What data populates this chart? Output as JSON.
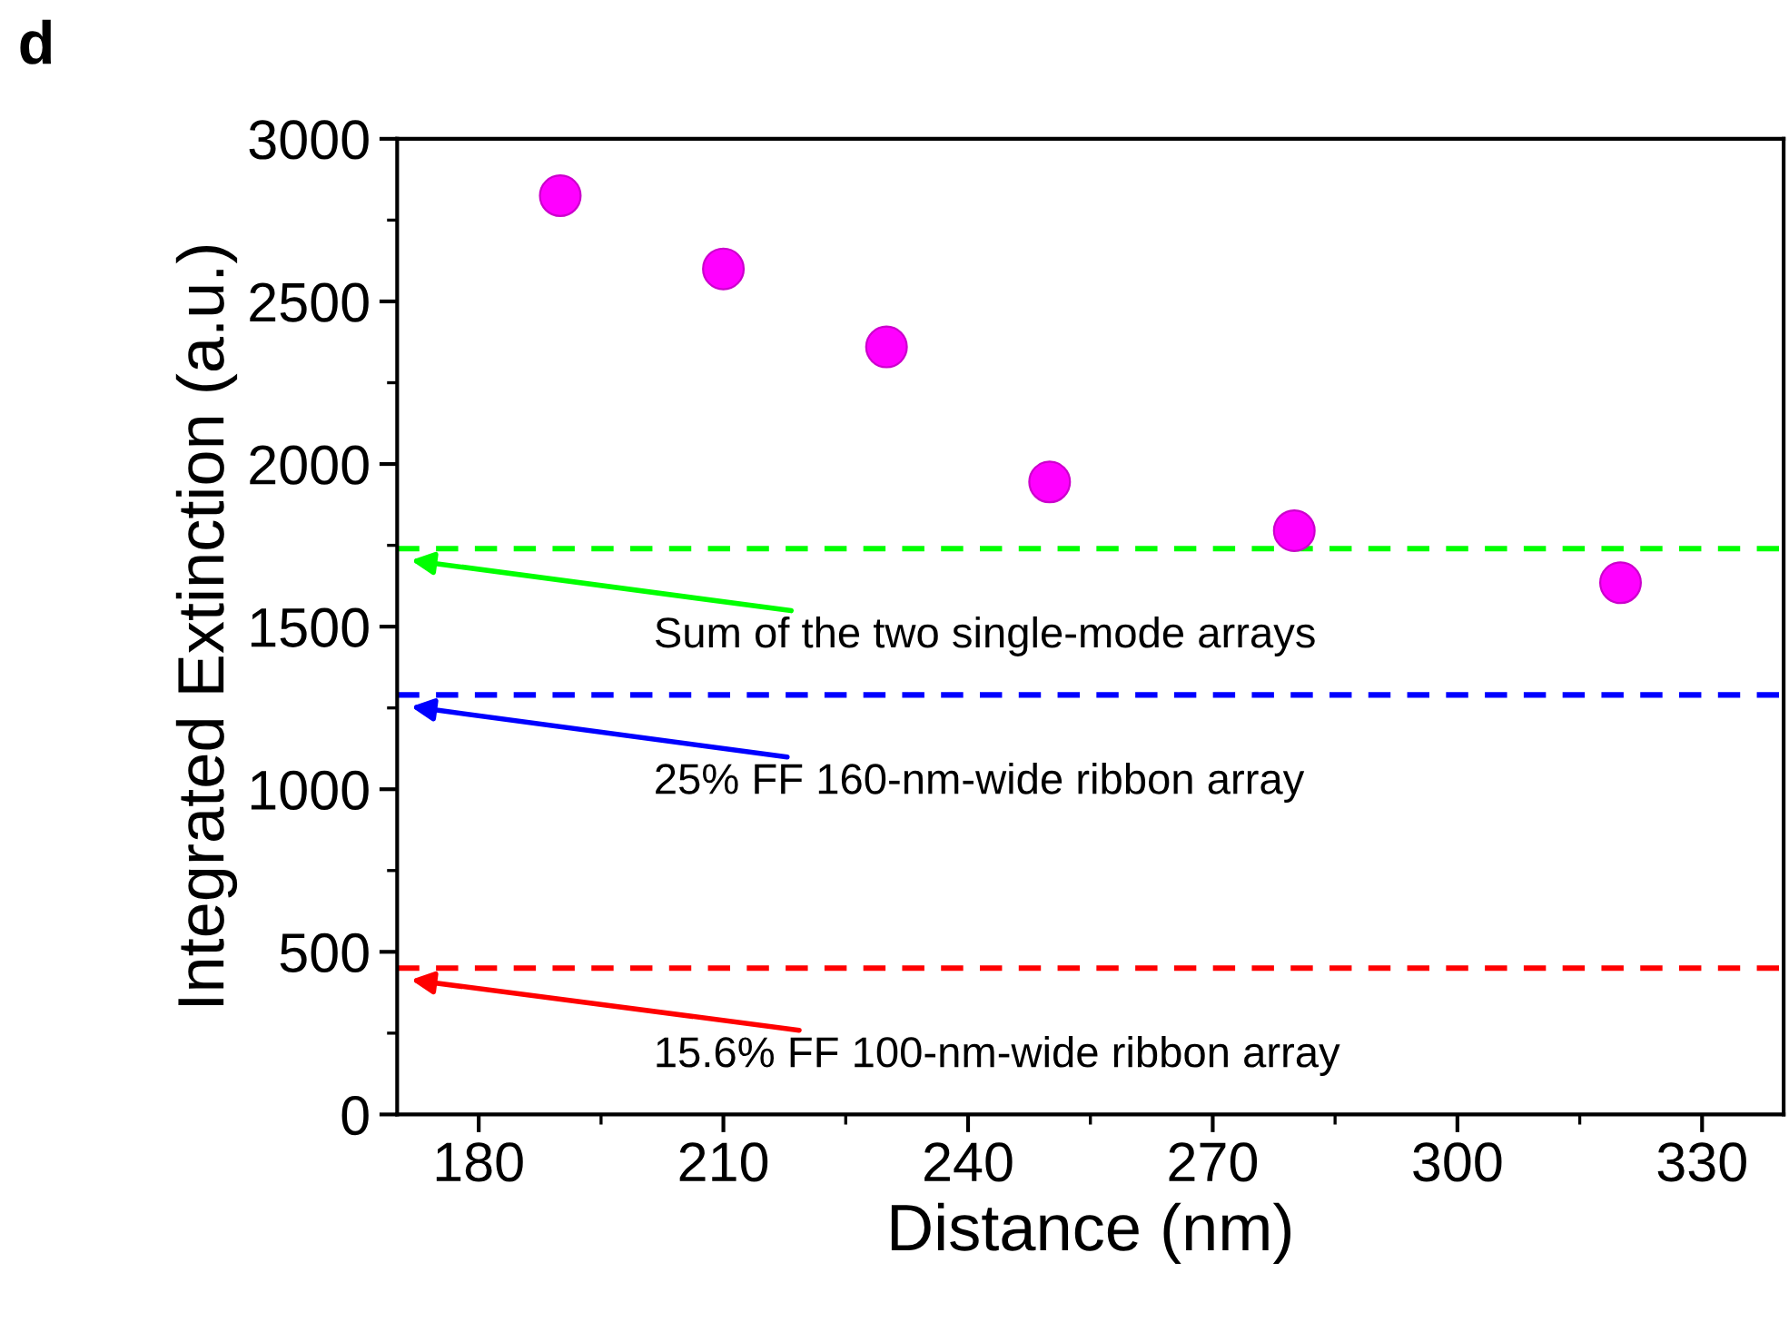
{
  "chart_data": {
    "type": "scatter",
    "xlabel": "Distance (nm)",
    "ylabel": "Integrated Extinction (a.u.)",
    "x": [
      190,
      210,
      230,
      250,
      280,
      320
    ],
    "values": [
      2825,
      2600,
      2360,
      1945,
      1795,
      1635
    ],
    "color": "#ff00ff",
    "marker": "circle",
    "xlim": [
      170,
      340
    ],
    "xticks": [
      180,
      210,
      240,
      270,
      300,
      330
    ],
    "ylim": [
      0,
      3000
    ],
    "yticks": [
      0,
      500,
      1000,
      1500,
      2000,
      2500,
      3000
    ],
    "grid": false,
    "legend": false,
    "ref_lines": [
      {
        "axis": "y",
        "value": 1740,
        "label": "Sum of the two single-mode arrays",
        "color": "#00ff00",
        "line_style": "dashed"
      },
      {
        "axis": "y",
        "value": 1290,
        "label": "25% FF 160-nm-wide ribbon array",
        "color": "#0000ff",
        "line_style": "dashed"
      },
      {
        "axis": "y",
        "value": 450,
        "label": "15.6% FF 100-nm-wide ribbon array",
        "color": "#ff0000",
        "line_style": "dashed"
      }
    ],
    "annotations": [
      "d"
    ]
  }
}
